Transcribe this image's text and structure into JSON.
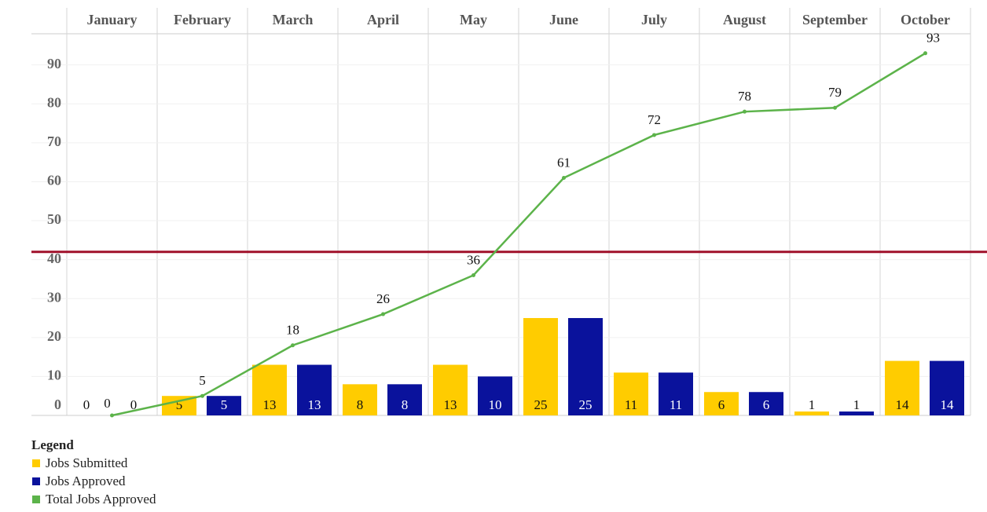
{
  "chart_data": {
    "type": "bar",
    "categories": [
      "January",
      "February",
      "March",
      "April",
      "May",
      "June",
      "July",
      "August",
      "September",
      "October"
    ],
    "series": [
      {
        "name": "Jobs Submitted",
        "type": "bar",
        "color": "#ffcc00",
        "values": [
          0,
          5,
          13,
          8,
          13,
          25,
          11,
          6,
          1,
          14
        ]
      },
      {
        "name": "Jobs Approved",
        "type": "bar",
        "color": "#0a129c",
        "values": [
          0,
          5,
          13,
          8,
          10,
          25,
          11,
          6,
          1,
          14
        ]
      },
      {
        "name": "Total Jobs Approved",
        "type": "line",
        "color": "#5cb34a",
        "values": [
          0,
          5,
          18,
          26,
          36,
          61,
          72,
          78,
          79,
          93
        ]
      }
    ],
    "ylim": [
      0,
      98
    ],
    "yticks": [
      0,
      10,
      20,
      30,
      40,
      50,
      60,
      70,
      80,
      90
    ],
    "grid": true,
    "reference_line": {
      "value": 42,
      "color": "#a0102a"
    },
    "legend_title": "Legend",
    "legend_position": "bottom-left"
  }
}
